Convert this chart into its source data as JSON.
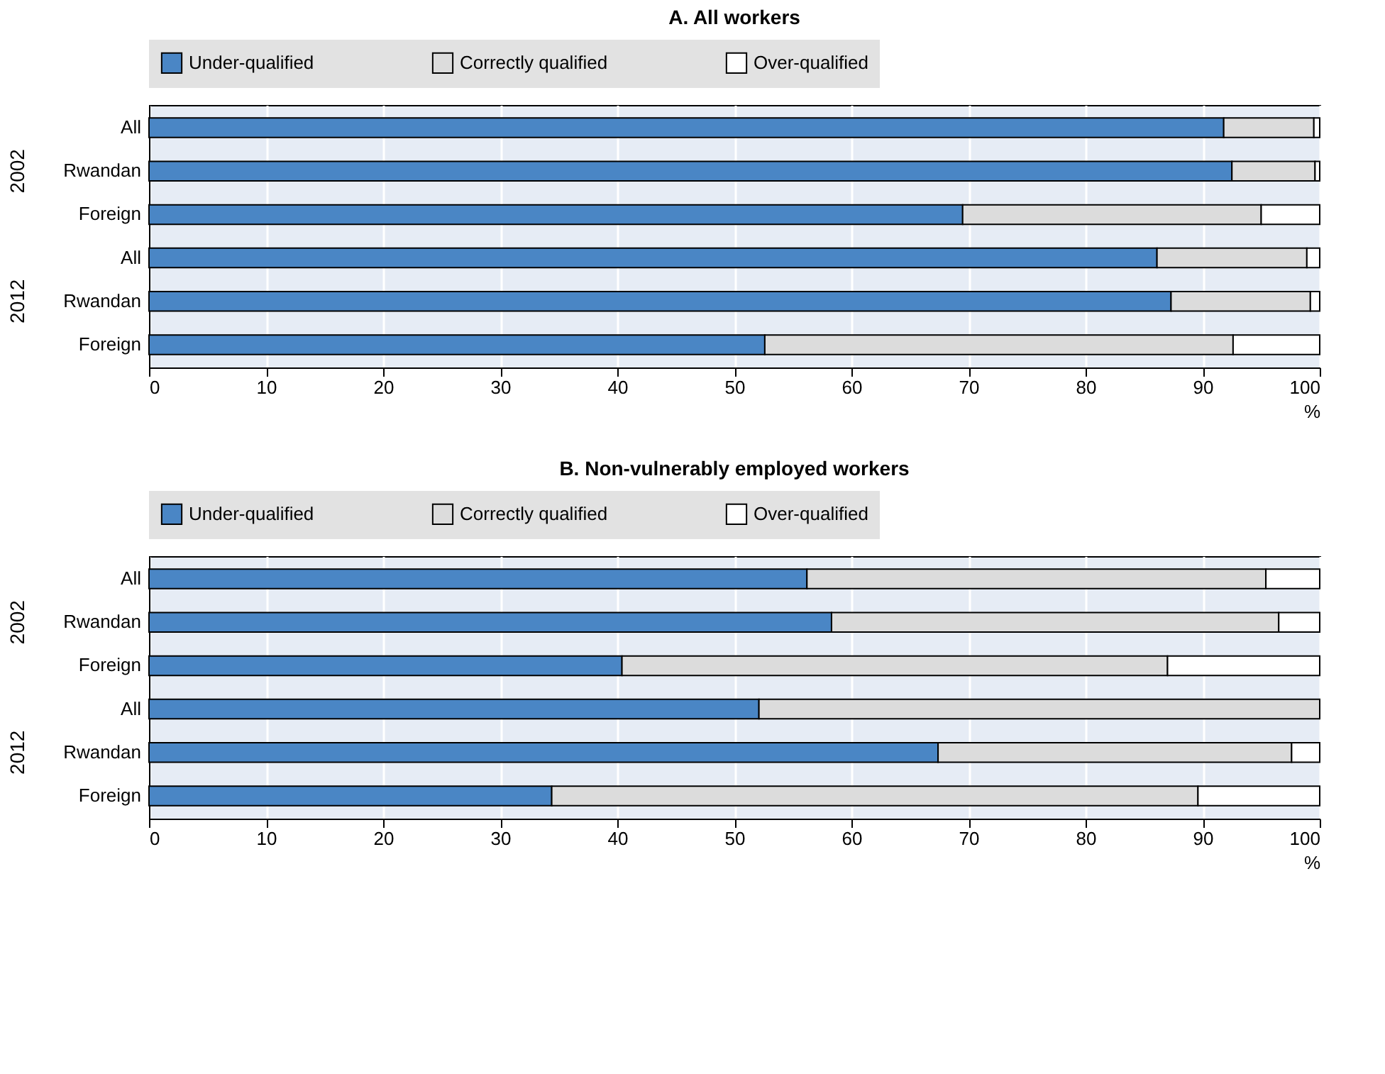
{
  "chart_data": [
    {
      "type": "bar",
      "orientation": "horizontal",
      "stacked": true,
      "title": "A. All workers",
      "xlabel": "%",
      "categories": [
        "All",
        "Rwandan",
        "Foreign",
        "All",
        "Rwandan",
        "Foreign"
      ],
      "annotations": [
        "2002",
        "2012"
      ],
      "xlim": [
        0,
        100
      ],
      "xticks": [
        0,
        10,
        20,
        30,
        40,
        50,
        60,
        70,
        80,
        90,
        100
      ],
      "grid": "x",
      "legend": "top",
      "series": [
        {
          "name": "Under-qualified",
          "color": "#4a86c5",
          "values": [
            91.8,
            92.5,
            69.5,
            86.1,
            87.3,
            52.6
          ]
        },
        {
          "name": "Correctly qualified",
          "color": "#dcdcdc",
          "values": [
            7.7,
            7.1,
            25.5,
            12.8,
            11.9,
            40.0
          ]
        },
        {
          "name": "Over-qualified",
          "color": "#ffffff",
          "values": [
            0.5,
            0.4,
            5.0,
            1.1,
            0.8,
            7.4
          ]
        }
      ]
    },
    {
      "type": "bar",
      "orientation": "horizontal",
      "stacked": true,
      "title": "B. Non-vulnerably employed workers",
      "xlabel": "%",
      "categories": [
        "All",
        "Rwandan",
        "Foreign",
        "All",
        "Rwandan",
        "Foreign"
      ],
      "annotations": [
        "2002",
        "2012"
      ],
      "xlim": [
        0,
        100
      ],
      "xticks": [
        0,
        10,
        20,
        30,
        40,
        50,
        60,
        70,
        80,
        90,
        100
      ],
      "grid": "x",
      "legend": "top",
      "series": [
        {
          "name": "Under-qualified",
          "color": "#4a86c5",
          "values": [
            56.2,
            58.3,
            40.4,
            52.1,
            67.4,
            34.4
          ]
        },
        {
          "name": "Correctly qualified",
          "color": "#dcdcdc",
          "values": [
            39.2,
            38.2,
            46.6,
            47.9,
            30.2,
            55.2
          ]
        },
        {
          "name": "Over-qualified",
          "color": "#ffffff",
          "values": [
            4.6,
            3.5,
            13.0,
            0.0,
            2.4,
            10.4
          ]
        }
      ]
    }
  ]
}
